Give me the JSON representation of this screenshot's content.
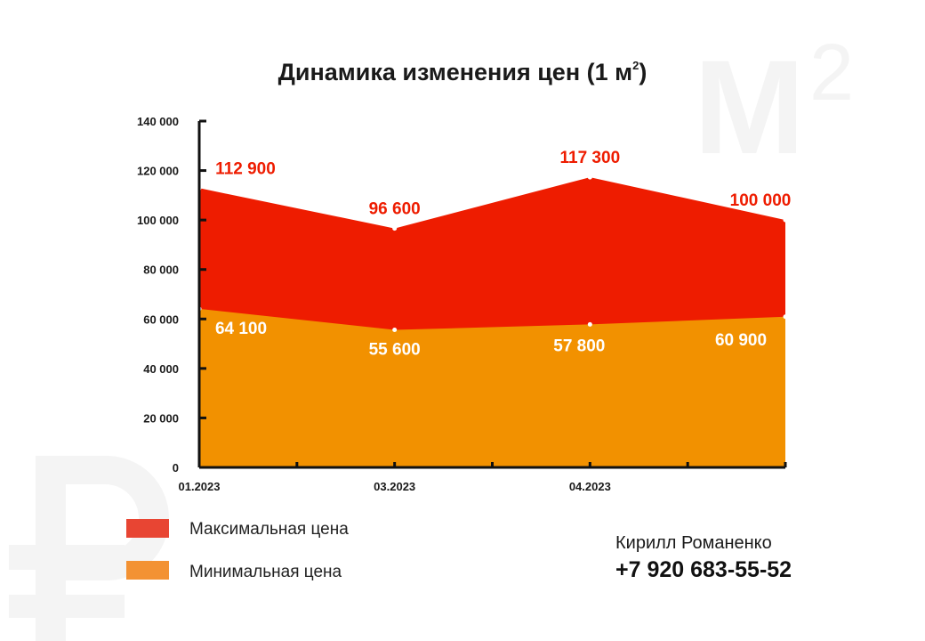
{
  "chart_data": {
    "type": "area",
    "title": "Динамика изменения цен (1 м",
    "title_sup": "2",
    "x_tick_labels": [
      "01.2023",
      "03.2023",
      "04.2023"
    ],
    "y_ticks": [
      "0",
      "20 000",
      "40 000",
      "60 000",
      "80 000",
      "100 000",
      "120 000",
      "140 000"
    ],
    "ylim": [
      0,
      140000
    ],
    "series": [
      {
        "name": "Максимальная цена",
        "color": "#ee1c00",
        "values": [
          112900,
          96600,
          117300,
          100000
        ],
        "labels": [
          "112 900",
          "96 600",
          "117 300",
          "100 000"
        ]
      },
      {
        "name": "Минимальная цена",
        "color": "#f29100",
        "values": [
          64100,
          55600,
          57800,
          60900
        ],
        "labels": [
          "64 100",
          "55 600",
          "57 800",
          "60 900"
        ]
      }
    ],
    "legend": {
      "placement": "bottom-left",
      "colors": [
        "#e84533",
        "#f39233"
      ]
    }
  },
  "contact": {
    "name": "Кирилл Романенко",
    "phone": "+7 920 683-55-52"
  },
  "watermarks": {
    "ruble_icon": "ruble-sign-icon",
    "square_meter_icon": "square-meter-icon"
  }
}
